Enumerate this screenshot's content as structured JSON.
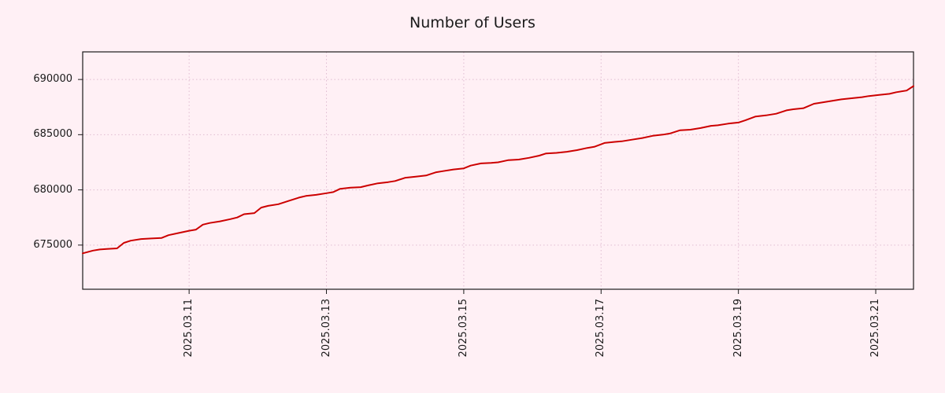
{
  "chart_data": {
    "type": "line",
    "title": "Number of Users",
    "xlabel": "",
    "ylabel": "",
    "xlim": [
      9.45,
      21.55
    ],
    "ylim": [
      671000,
      692500
    ],
    "x_unit": "day of 2025.03",
    "grid": "dotted",
    "legend": "none",
    "background_color": "#fff0f5",
    "grid_color": "#e0bcd1",
    "line_color": "#cc0000",
    "axis_color": "#1a1a1a",
    "x_ticks": [
      {
        "value": 11,
        "label": "2025.03.11"
      },
      {
        "value": 13,
        "label": "2025.03.13"
      },
      {
        "value": 15,
        "label": "2025.03.15"
      },
      {
        "value": 17,
        "label": "2025.03.17"
      },
      {
        "value": 19,
        "label": "2025.03.19"
      },
      {
        "value": 21,
        "label": "2025.03.21"
      }
    ],
    "y_ticks": [
      {
        "value": 675000,
        "label": "675000"
      },
      {
        "value": 680000,
        "label": "680000"
      },
      {
        "value": 685000,
        "label": "685000"
      },
      {
        "value": 690000,
        "label": "690000"
      }
    ],
    "series": [
      {
        "color": "#cc0000",
        "x": [
          9.45,
          9.6,
          9.7,
          9.8,
          9.95,
          10.05,
          10.15,
          10.3,
          10.45,
          10.6,
          10.7,
          10.85,
          11.0,
          11.1,
          11.2,
          11.3,
          11.45,
          11.6,
          11.7,
          11.8,
          11.95,
          12.05,
          12.15,
          12.3,
          12.45,
          12.6,
          12.7,
          12.85,
          13.0,
          13.1,
          13.2,
          13.35,
          13.5,
          13.6,
          13.75,
          13.9,
          14.0,
          14.15,
          14.3,
          14.45,
          14.6,
          14.7,
          14.85,
          15.0,
          15.1,
          15.25,
          15.4,
          15.5,
          15.65,
          15.8,
          15.95,
          16.1,
          16.2,
          16.35,
          16.5,
          16.65,
          16.8,
          16.9,
          17.05,
          17.2,
          17.3,
          17.45,
          17.6,
          17.75,
          17.9,
          18.0,
          18.15,
          18.3,
          18.45,
          18.6,
          18.7,
          18.85,
          19.0,
          19.1,
          19.25,
          19.4,
          19.55,
          19.7,
          19.8,
          19.95,
          20.1,
          20.2,
          20.35,
          20.5,
          20.65,
          20.8,
          20.9,
          21.05,
          21.2,
          21.3,
          21.45,
          21.55
        ],
        "y": [
          674250,
          674500,
          674600,
          674650,
          674700,
          675200,
          675400,
          675550,
          675600,
          675650,
          675900,
          676100,
          676300,
          676400,
          676850,
          677000,
          677150,
          677350,
          677500,
          677800,
          677900,
          678400,
          678550,
          678700,
          679000,
          679300,
          679450,
          679550,
          679700,
          679800,
          680100,
          680200,
          680250,
          680400,
          680600,
          680700,
          680800,
          681100,
          681200,
          681300,
          681600,
          681700,
          681850,
          681950,
          682200,
          682400,
          682450,
          682500,
          682700,
          682750,
          682900,
          683100,
          683300,
          683350,
          683450,
          683600,
          683800,
          683900,
          684250,
          684350,
          684400,
          684550,
          684700,
          684900,
          685000,
          685100,
          685400,
          685450,
          685600,
          685800,
          685850,
          686000,
          686100,
          686300,
          686650,
          686750,
          686900,
          687200,
          687300,
          687400,
          687800,
          687900,
          688050,
          688200,
          688300,
          688400,
          688500,
          688600,
          688700,
          688850,
          689000,
          689400
        ]
      }
    ]
  }
}
